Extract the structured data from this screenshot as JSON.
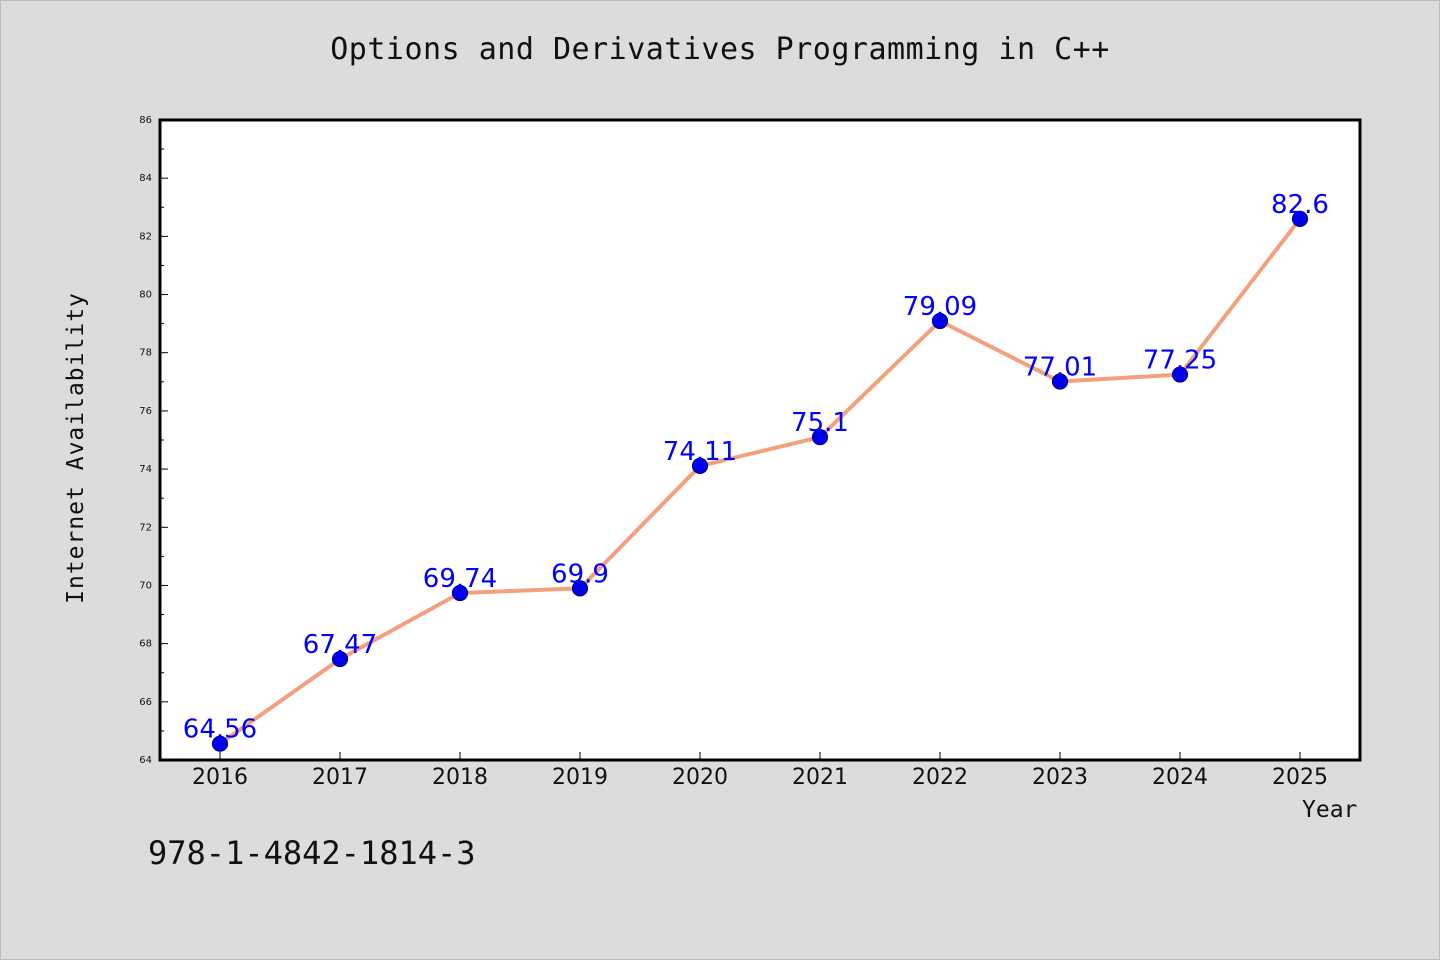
{
  "chart_data": {
    "type": "line",
    "title": "Options and Derivatives Programming in C++",
    "xlabel": "Year",
    "ylabel": "Internet Availability",
    "categories": [
      "2016",
      "2017",
      "2018",
      "2019",
      "2020",
      "2021",
      "2022",
      "2023",
      "2024",
      "2025"
    ],
    "series": [
      {
        "values": [
          64.56,
          67.47,
          69.74,
          69.9,
          74.11,
          75.1,
          79.09,
          77.01,
          77.25,
          82.6
        ],
        "labels": [
          "64.56",
          "67.47",
          "69.74",
          "69.9",
          "74.11",
          "75.1",
          "79.09",
          "77.01",
          "77.25",
          "82.6"
        ]
      }
    ],
    "ylim": [
      64,
      86
    ],
    "yticks": [
      "64",
      "66",
      "68",
      "70",
      "72",
      "74",
      "76",
      "78",
      "80",
      "82",
      "84",
      "86"
    ],
    "grid": false,
    "colors": {
      "line": "#f4a07e",
      "marker": "#0000ee",
      "marker_edge": "#00008b",
      "data_label": "#0000ff",
      "background": "#dcdcdc",
      "plot_background": "#ffffff"
    }
  },
  "footnote": "978-1-4842-1814-3"
}
